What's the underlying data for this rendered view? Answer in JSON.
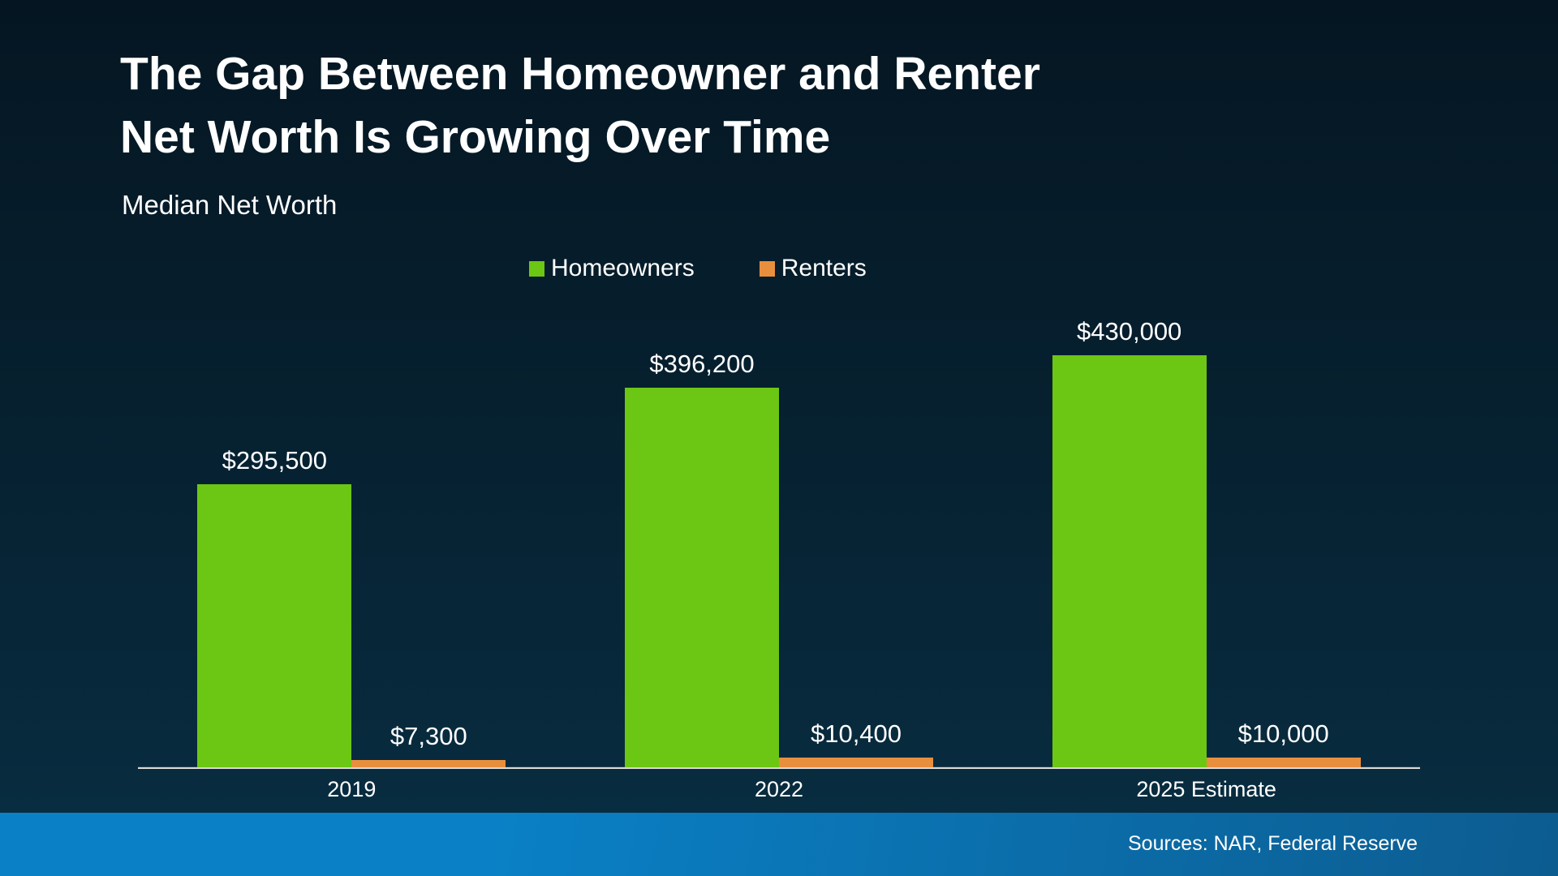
{
  "slide": {
    "title_lines": [
      "The Gap Between Homeowner and Renter",
      "Net Worth Is Growing Over Time"
    ],
    "subtitle": "Median Net Worth",
    "footer": {
      "sources": "Sources: NAR, Federal Reserve"
    }
  },
  "legend": {
    "items": [
      {
        "label": "Homeowners",
        "color": "#6cc614"
      },
      {
        "label": "Renters",
        "color": "#e88f3e"
      }
    ]
  },
  "chart_data": {
    "type": "bar",
    "title": "Median Net Worth",
    "categories": [
      "2019",
      "2022",
      "2025 Estimate"
    ],
    "series": [
      {
        "name": "Homeowners",
        "color": "#6cc614",
        "values": [
          295500,
          396200,
          430000
        ],
        "labels": [
          "$295,500",
          "$396,200",
          "$430,000"
        ]
      },
      {
        "name": "Renters",
        "color": "#e88f3e",
        "values": [
          7300,
          10400,
          10000
        ],
        "labels": [
          "$7,300",
          "$10,400",
          "$10,000"
        ]
      }
    ],
    "ylim": [
      0,
      430000
    ],
    "grid": false,
    "y_axis_visible": false,
    "legend_position": "top",
    "value_labels": true
  },
  "theme": {
    "bg_top": "#051622",
    "bg_bottom": "#082c40",
    "green": "#6cc614",
    "orange": "#e88f3e",
    "axis_line": "#d9d9d9",
    "footer_left": "#0a81c7",
    "footer_right": "#0c5c90",
    "text": "#ffffff"
  }
}
